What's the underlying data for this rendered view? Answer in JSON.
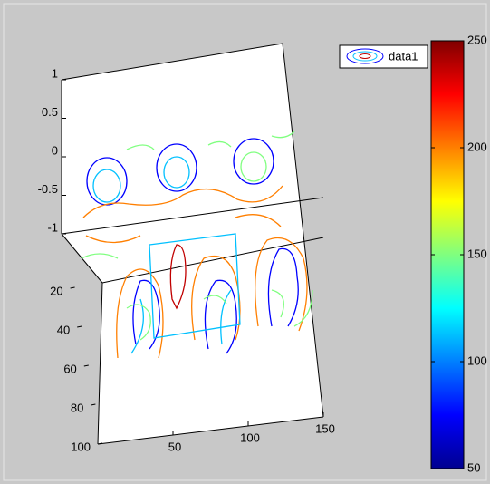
{
  "chart_data": {
    "type": "contour3",
    "series": [
      {
        "name": "data1"
      }
    ],
    "xlim": [
      0,
      150
    ],
    "xticks": [
      50,
      100,
      150
    ],
    "ylim": [
      0,
      100
    ],
    "yticks": [
      20,
      40,
      60,
      80,
      100
    ],
    "zlim": [
      -1,
      1
    ],
    "zticks": [
      1,
      0.5,
      0,
      -0.5,
      -1
    ],
    "colorbar": {
      "clim": [
        50,
        250
      ],
      "ticks": [
        50,
        100,
        150,
        200,
        250
      ]
    }
  }
}
